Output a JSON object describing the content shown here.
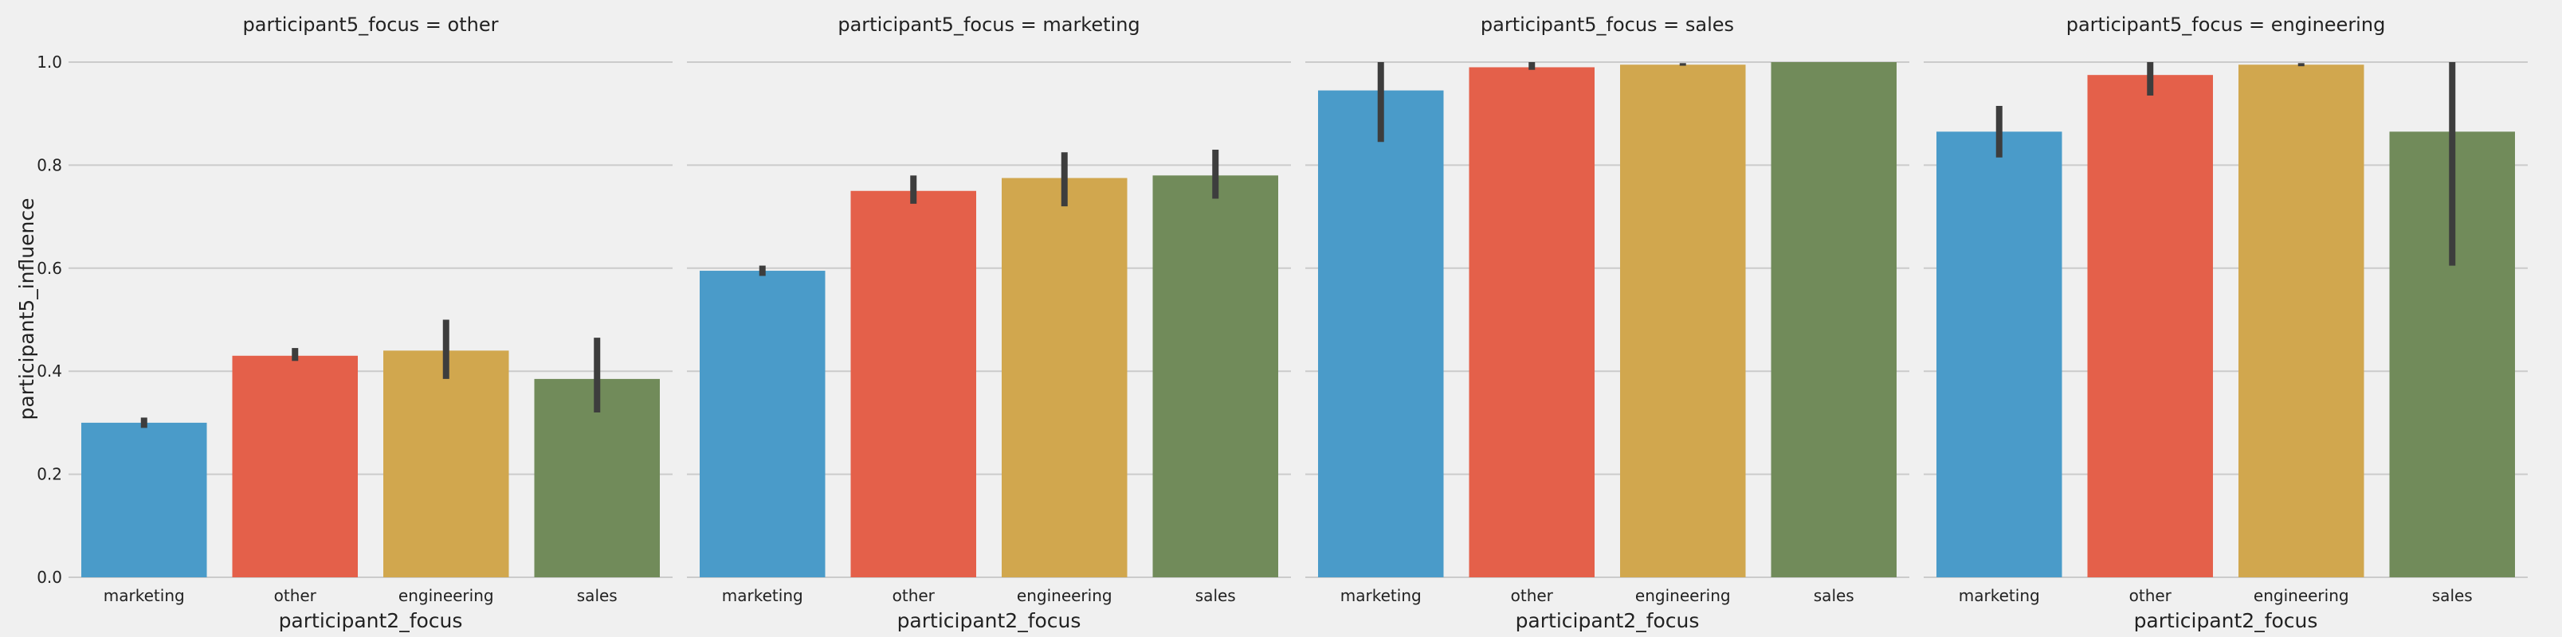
{
  "chart_data": {
    "type": "bar",
    "facet_variable": "participant5_focus",
    "xlabel": "participant2_focus",
    "ylabel": "participant5_influence",
    "ylim": [
      0,
      1.0
    ],
    "yticks": [
      "0.0",
      "0.2",
      "0.4",
      "0.6",
      "0.8",
      "1.0"
    ],
    "ytick_values": [
      0,
      0.2,
      0.4,
      0.6,
      0.8,
      1.0
    ],
    "grid": true,
    "categories": [
      "marketing",
      "other",
      "engineering",
      "sales"
    ],
    "colors": [
      "#4a9bc9",
      "#e4604a",
      "#d1a74e",
      "#718b5a"
    ],
    "panels": [
      {
        "title": "participant5_focus = other",
        "values": [
          0.3,
          0.43,
          0.44,
          0.385
        ],
        "err_low": [
          0.29,
          0.42,
          0.385,
          0.32
        ],
        "err_high": [
          0.31,
          0.445,
          0.5,
          0.465
        ]
      },
      {
        "title": "participant5_focus = marketing",
        "values": [
          0.595,
          0.75,
          0.775,
          0.78
        ],
        "err_low": [
          0.585,
          0.725,
          0.72,
          0.735
        ],
        "err_high": [
          0.605,
          0.78,
          0.825,
          0.83
        ]
      },
      {
        "title": "participant5_focus = sales",
        "values": [
          0.945,
          0.99,
          0.995,
          1.0
        ],
        "err_low": [
          0.845,
          0.985,
          0.993,
          1.0
        ],
        "err_high": [
          1.0,
          1.0,
          0.998,
          1.0
        ]
      },
      {
        "title": "participant5_focus = engineering",
        "values": [
          0.865,
          0.975,
          0.995,
          0.865
        ],
        "err_low": [
          0.815,
          0.935,
          0.992,
          0.605
        ],
        "err_high": [
          0.915,
          1.0,
          0.998,
          1.0
        ]
      }
    ]
  }
}
